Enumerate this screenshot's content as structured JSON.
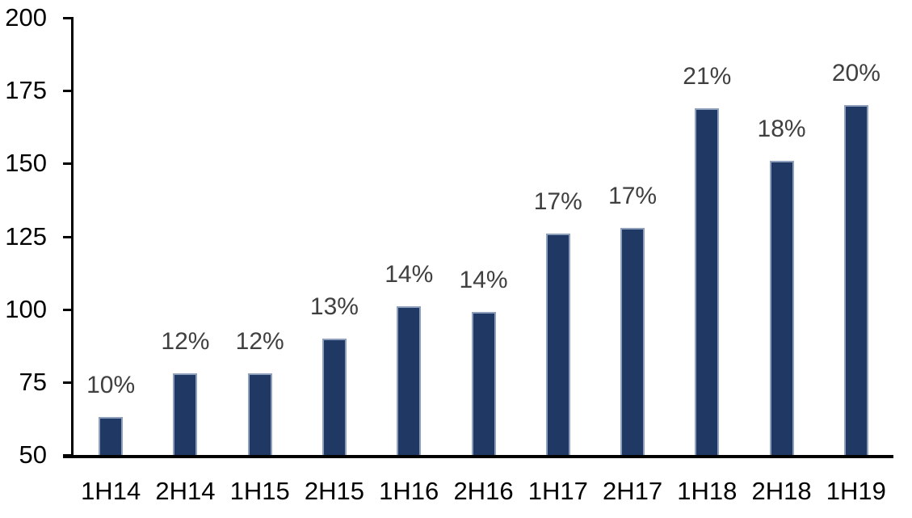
{
  "chart_data": {
    "type": "bar",
    "title": "",
    "xlabel": "",
    "ylabel": "",
    "categories": [
      "1H14",
      "2H14",
      "1H15",
      "2H15",
      "1H16",
      "2H16",
      "1H17",
      "2H17",
      "1H18",
      "2H18",
      "1H19"
    ],
    "values": [
      63,
      78,
      78,
      90,
      101,
      99,
      126,
      128,
      169,
      151,
      170
    ],
    "data_labels": [
      "10%",
      "12%",
      "12%",
      "13%",
      "14%",
      "14%",
      "17%",
      "17%",
      "21%",
      "18%",
      "20%"
    ],
    "ylim": [
      50,
      200
    ],
    "yticks": [
      50,
      75,
      100,
      125,
      150,
      175,
      200
    ],
    "grid": false,
    "legend": false,
    "colors": {
      "bar_fill": "#1F3864",
      "bar_border": "#8FA0BC",
      "data_label": "#404040",
      "axis_label": "#000000",
      "axis_line": "#000000",
      "background": "#FFFFFF"
    }
  }
}
